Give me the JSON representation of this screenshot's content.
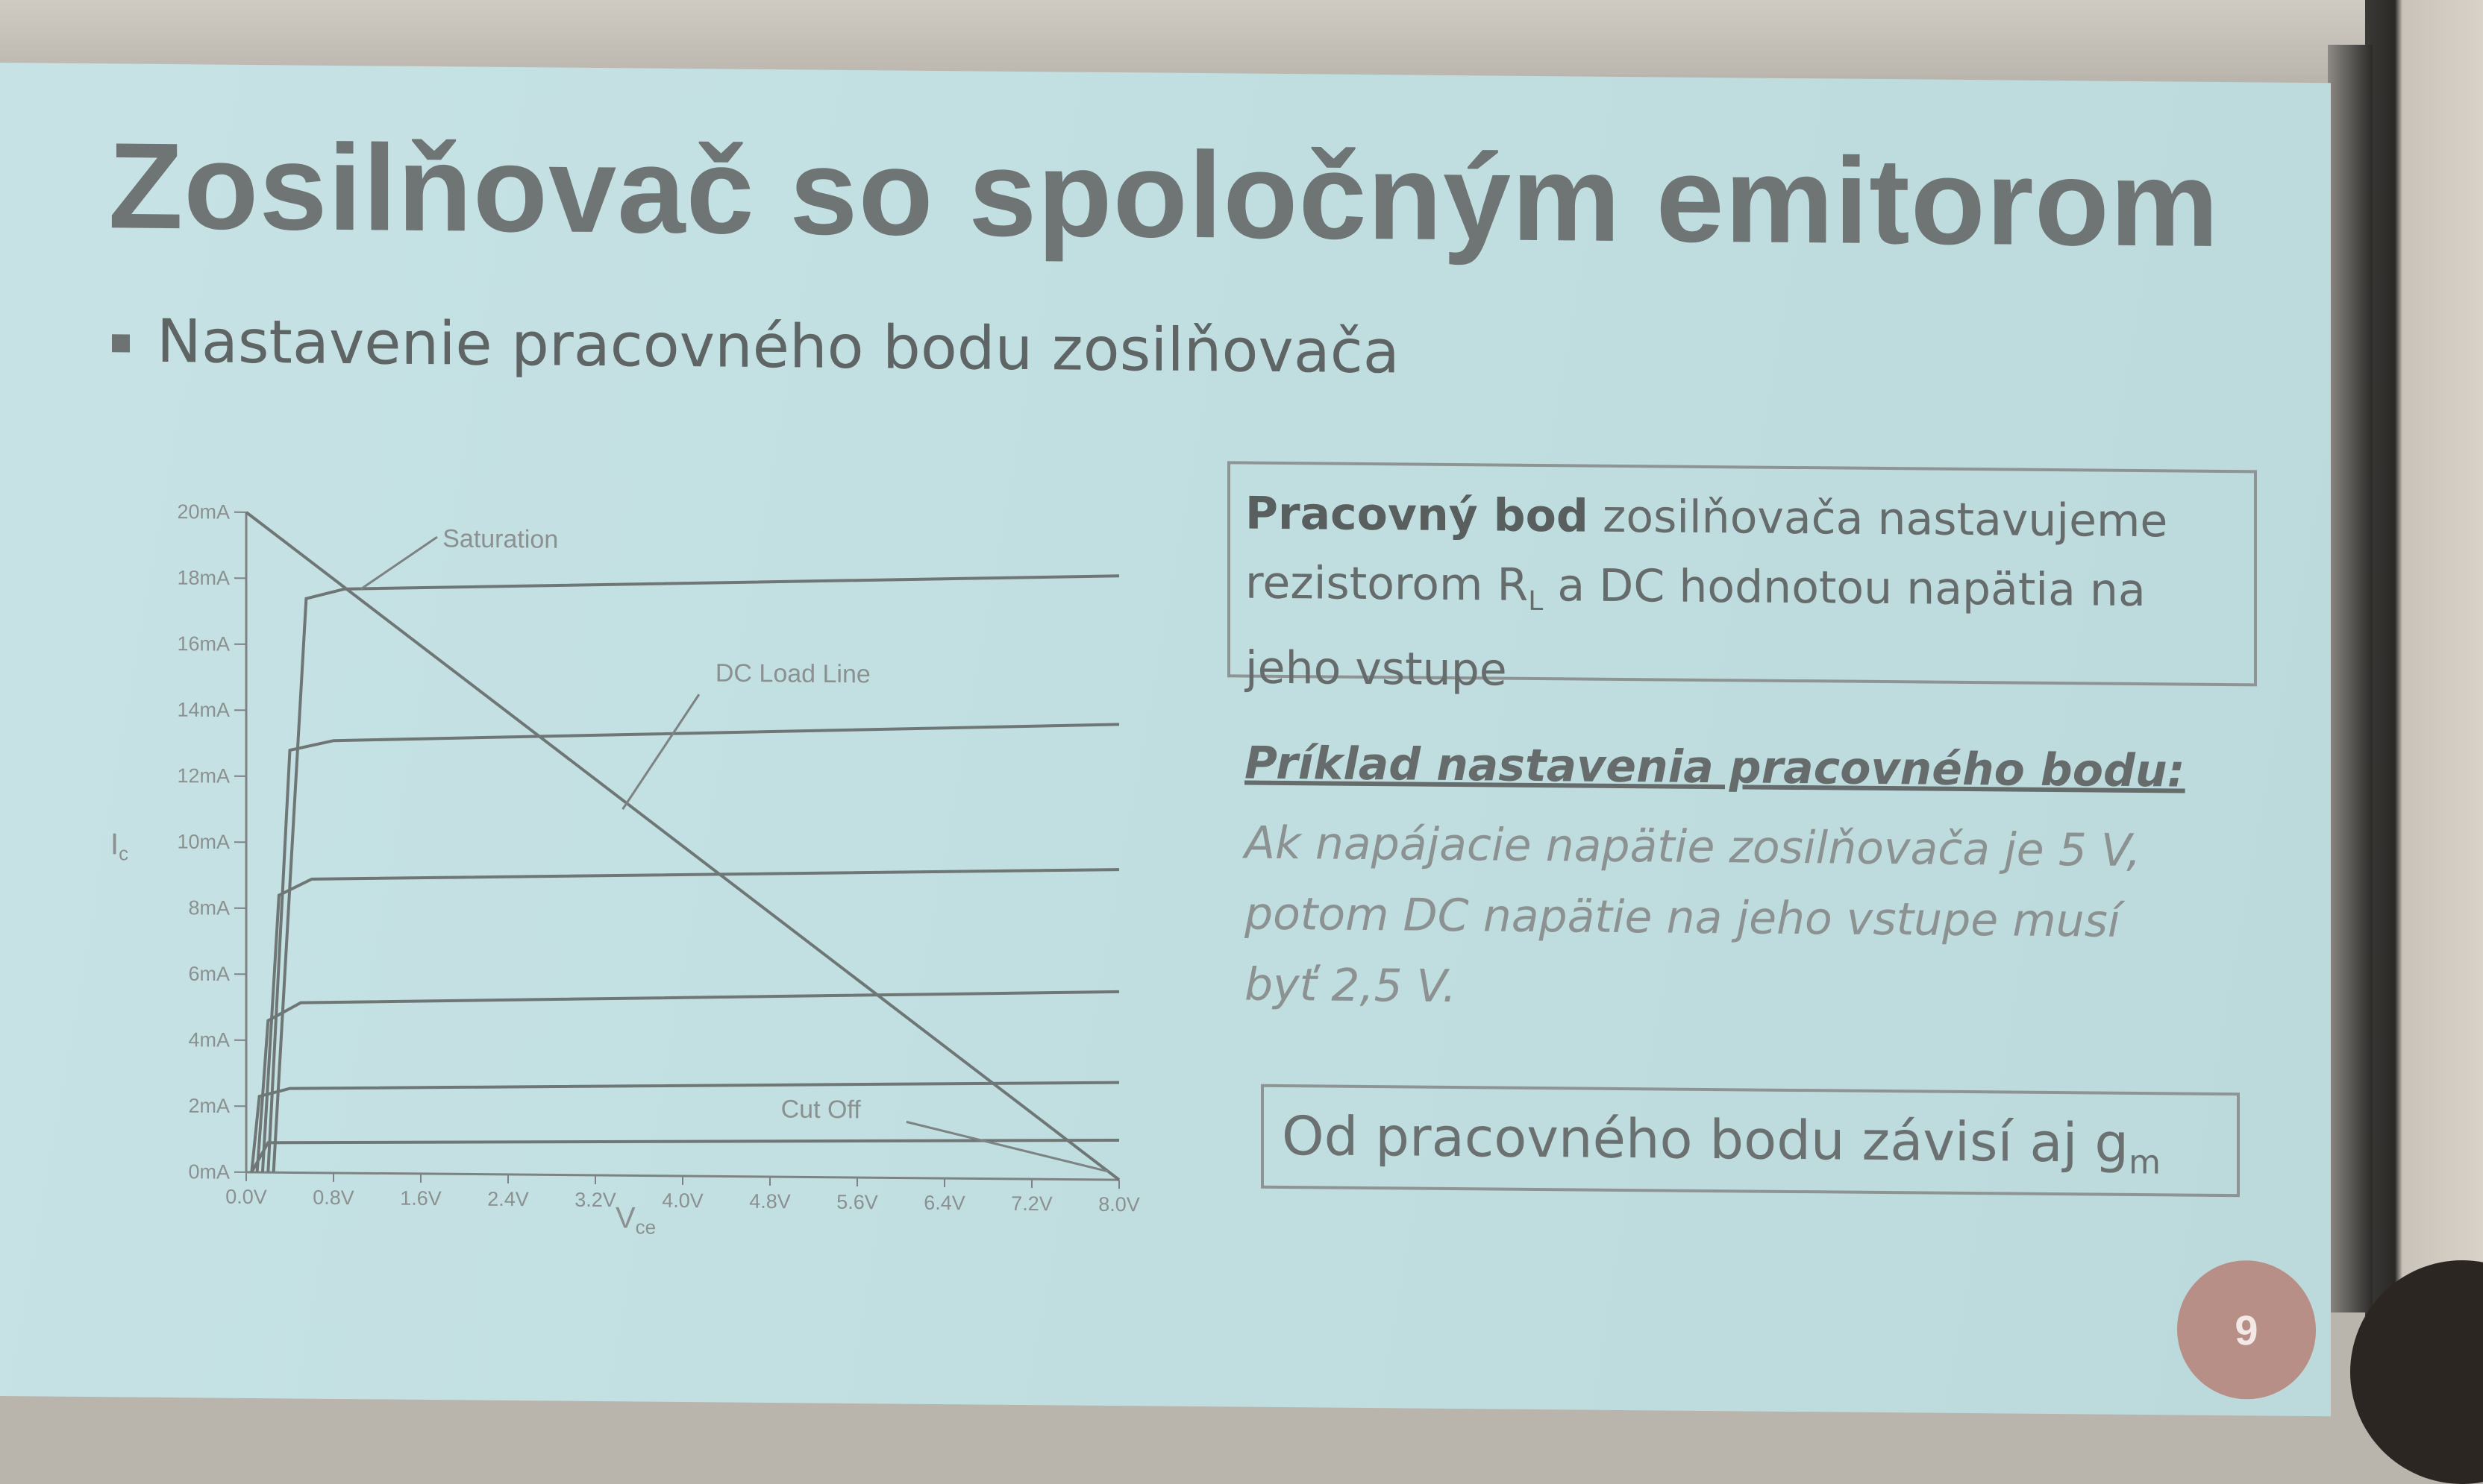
{
  "slide": {
    "title": "Zosilňovač so spoločným emitorom",
    "bullet": "Nastavenie pracovného bodu zosilňovača",
    "box1": {
      "bold": "Pracovný bod",
      "text_a": " zosilňovača nastavujeme rezistorom R",
      "subscript": "L",
      "text_b": " a DC hodnotou napätia na jeho vstupe"
    },
    "example_heading": "Príklad nastavenia pracovného bodu:",
    "example_lines": [
      "Ak napájacie napätie zosilňovača je 5 V,",
      "potom DC napätie na jeho vstupe musí",
      "byť 2,5 V."
    ],
    "box2": {
      "text": "Od pracovného bodu závisí aj g",
      "subscript": "m"
    },
    "page_number": "9"
  },
  "chart_data": {
    "type": "line",
    "xlabel": "V",
    "xlabel_sub": "ce",
    "ylabel": "I",
    "ylabel_sub": "c",
    "x_ticks": [
      "0.0V",
      "0.8V",
      "1.6V",
      "2.4V",
      "3.2V",
      "4.0V",
      "4.8V",
      "5.6V",
      "6.4V",
      "7.2V",
      "8.0V"
    ],
    "y_ticks": [
      "0mA",
      "2mA",
      "4mA",
      "6mA",
      "8mA",
      "10mA",
      "12mA",
      "14mA",
      "16mA",
      "18mA",
      "20mA"
    ],
    "xlim": [
      0,
      8
    ],
    "ylim": [
      0,
      20
    ],
    "annotations": [
      {
        "text": "Saturation",
        "x": 1.8,
        "y": 19.0
      },
      {
        "text": "DC Load Line",
        "x": 4.3,
        "y": 15.0
      },
      {
        "text": "Cut Off",
        "x": 4.9,
        "y": 1.8
      }
    ],
    "series": [
      {
        "points": [
          [
            0.05,
            0
          ],
          [
            0.2,
            0.9
          ],
          [
            8.0,
            1.2
          ]
        ]
      },
      {
        "points": [
          [
            0.05,
            0
          ],
          [
            0.12,
            2.3
          ],
          [
            0.4,
            2.55
          ],
          [
            8.0,
            2.95
          ]
        ]
      },
      {
        "points": [
          [
            0.1,
            0
          ],
          [
            0.2,
            4.6
          ],
          [
            0.5,
            5.15
          ],
          [
            8.0,
            5.7
          ]
        ]
      },
      {
        "points": [
          [
            0.15,
            0
          ],
          [
            0.3,
            8.4
          ],
          [
            0.6,
            8.9
          ],
          [
            8.0,
            9.4
          ]
        ]
      },
      {
        "points": [
          [
            0.2,
            0
          ],
          [
            0.4,
            12.8
          ],
          [
            0.8,
            13.1
          ],
          [
            8.0,
            13.8
          ]
        ]
      },
      {
        "points": [
          [
            0.25,
            0
          ],
          [
            0.55,
            17.4
          ],
          [
            0.9,
            17.7
          ],
          [
            8.0,
            18.3
          ]
        ]
      },
      {
        "points": [
          [
            0.0,
            20
          ],
          [
            8.0,
            0
          ]
        ]
      }
    ]
  }
}
